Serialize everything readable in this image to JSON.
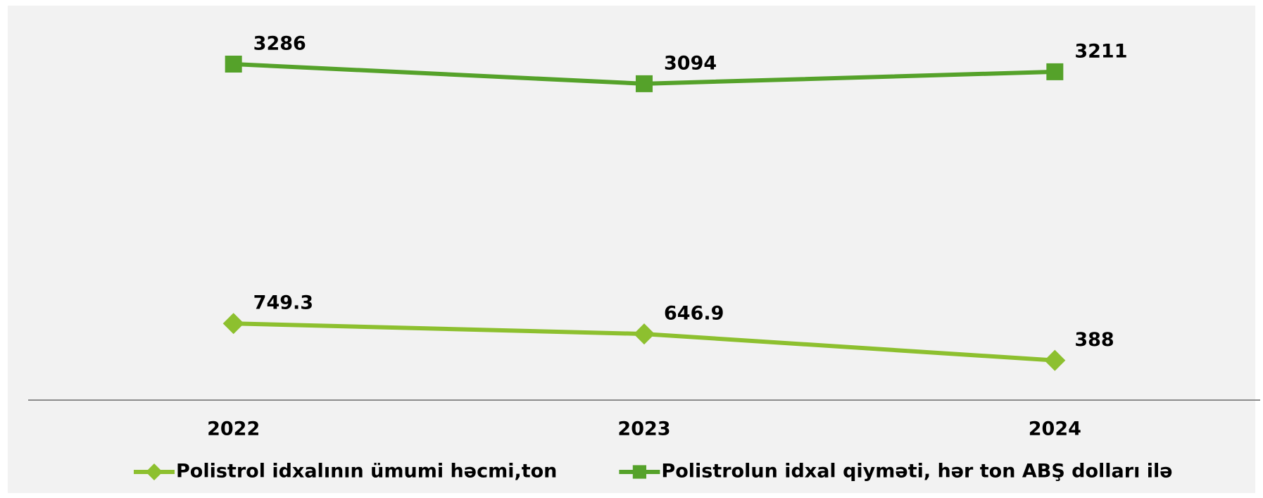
{
  "chart_data": {
    "type": "line",
    "categories": [
      "2022",
      "2023",
      "2024"
    ],
    "series": [
      {
        "name": "Polistrol idxalının ümumi həcmi,ton",
        "color": "#8dc02f",
        "marker": "diamond",
        "values": [
          749.3,
          646.9,
          388
        ]
      },
      {
        "name": "Polistrolun idxal qiyməti, hər ton ABŞ dolları ilə",
        "color": "#55a22a",
        "marker": "square",
        "values": [
          3286,
          3094,
          3211
        ]
      }
    ],
    "legend": "bottom"
  }
}
